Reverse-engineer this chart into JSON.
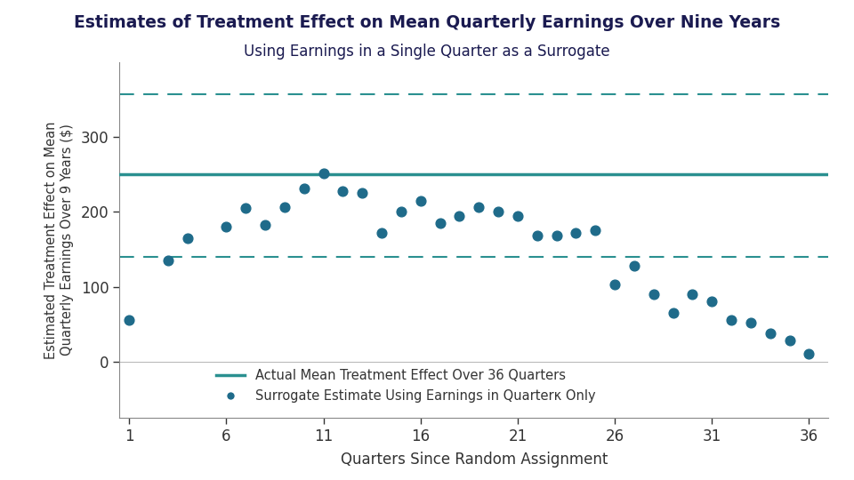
{
  "title_line1": "Estimates of Treatment Effect on Mean Quarterly Earnings Over Nine Years",
  "title_line2": "Using Earnings in a Single Quarter as a Surrogate",
  "xlabel": "Quarters Since Random Assignment",
  "ylabel": "Estimated Treatment Effect on Mean\nQuarterly Earnings Over 9 Years ($)",
  "actual_effect": 250,
  "ci_upper": 358,
  "ci_lower": 140,
  "scatter_x": [
    1,
    3,
    4,
    6,
    7,
    8,
    9,
    10,
    11,
    12,
    13,
    14,
    15,
    16,
    17,
    18,
    19,
    20,
    21,
    22,
    23,
    24,
    25,
    26,
    27,
    28,
    29,
    30,
    31,
    32,
    33,
    34,
    35,
    36
  ],
  "scatter_y": [
    55,
    135,
    165,
    180,
    205,
    183,
    207,
    232,
    252,
    228,
    225,
    172,
    200,
    215,
    185,
    195,
    207,
    200,
    195,
    168,
    168,
    172,
    175,
    103,
    128,
    90,
    65,
    90,
    80,
    55,
    52,
    38,
    28,
    10
  ],
  "teal_color": "#2a9090",
  "dot_color": "#1f6b8a",
  "dashed_color": "#2a9090",
  "ylim_bottom": -75,
  "ylim_top": 400,
  "xlim_left": 0.5,
  "xlim_right": 37,
  "xticks": [
    1,
    6,
    11,
    16,
    21,
    26,
    31,
    36
  ],
  "yticks": [
    0,
    100,
    200,
    300
  ],
  "background_color": "#ffffff",
  "title_color": "#1a1a50",
  "legend_label1": "Actual Mean Treatment Effect Over 36 Quarters",
  "legend_label2": "Surrogate Estimate Using Earnings in Quarterκ Only"
}
